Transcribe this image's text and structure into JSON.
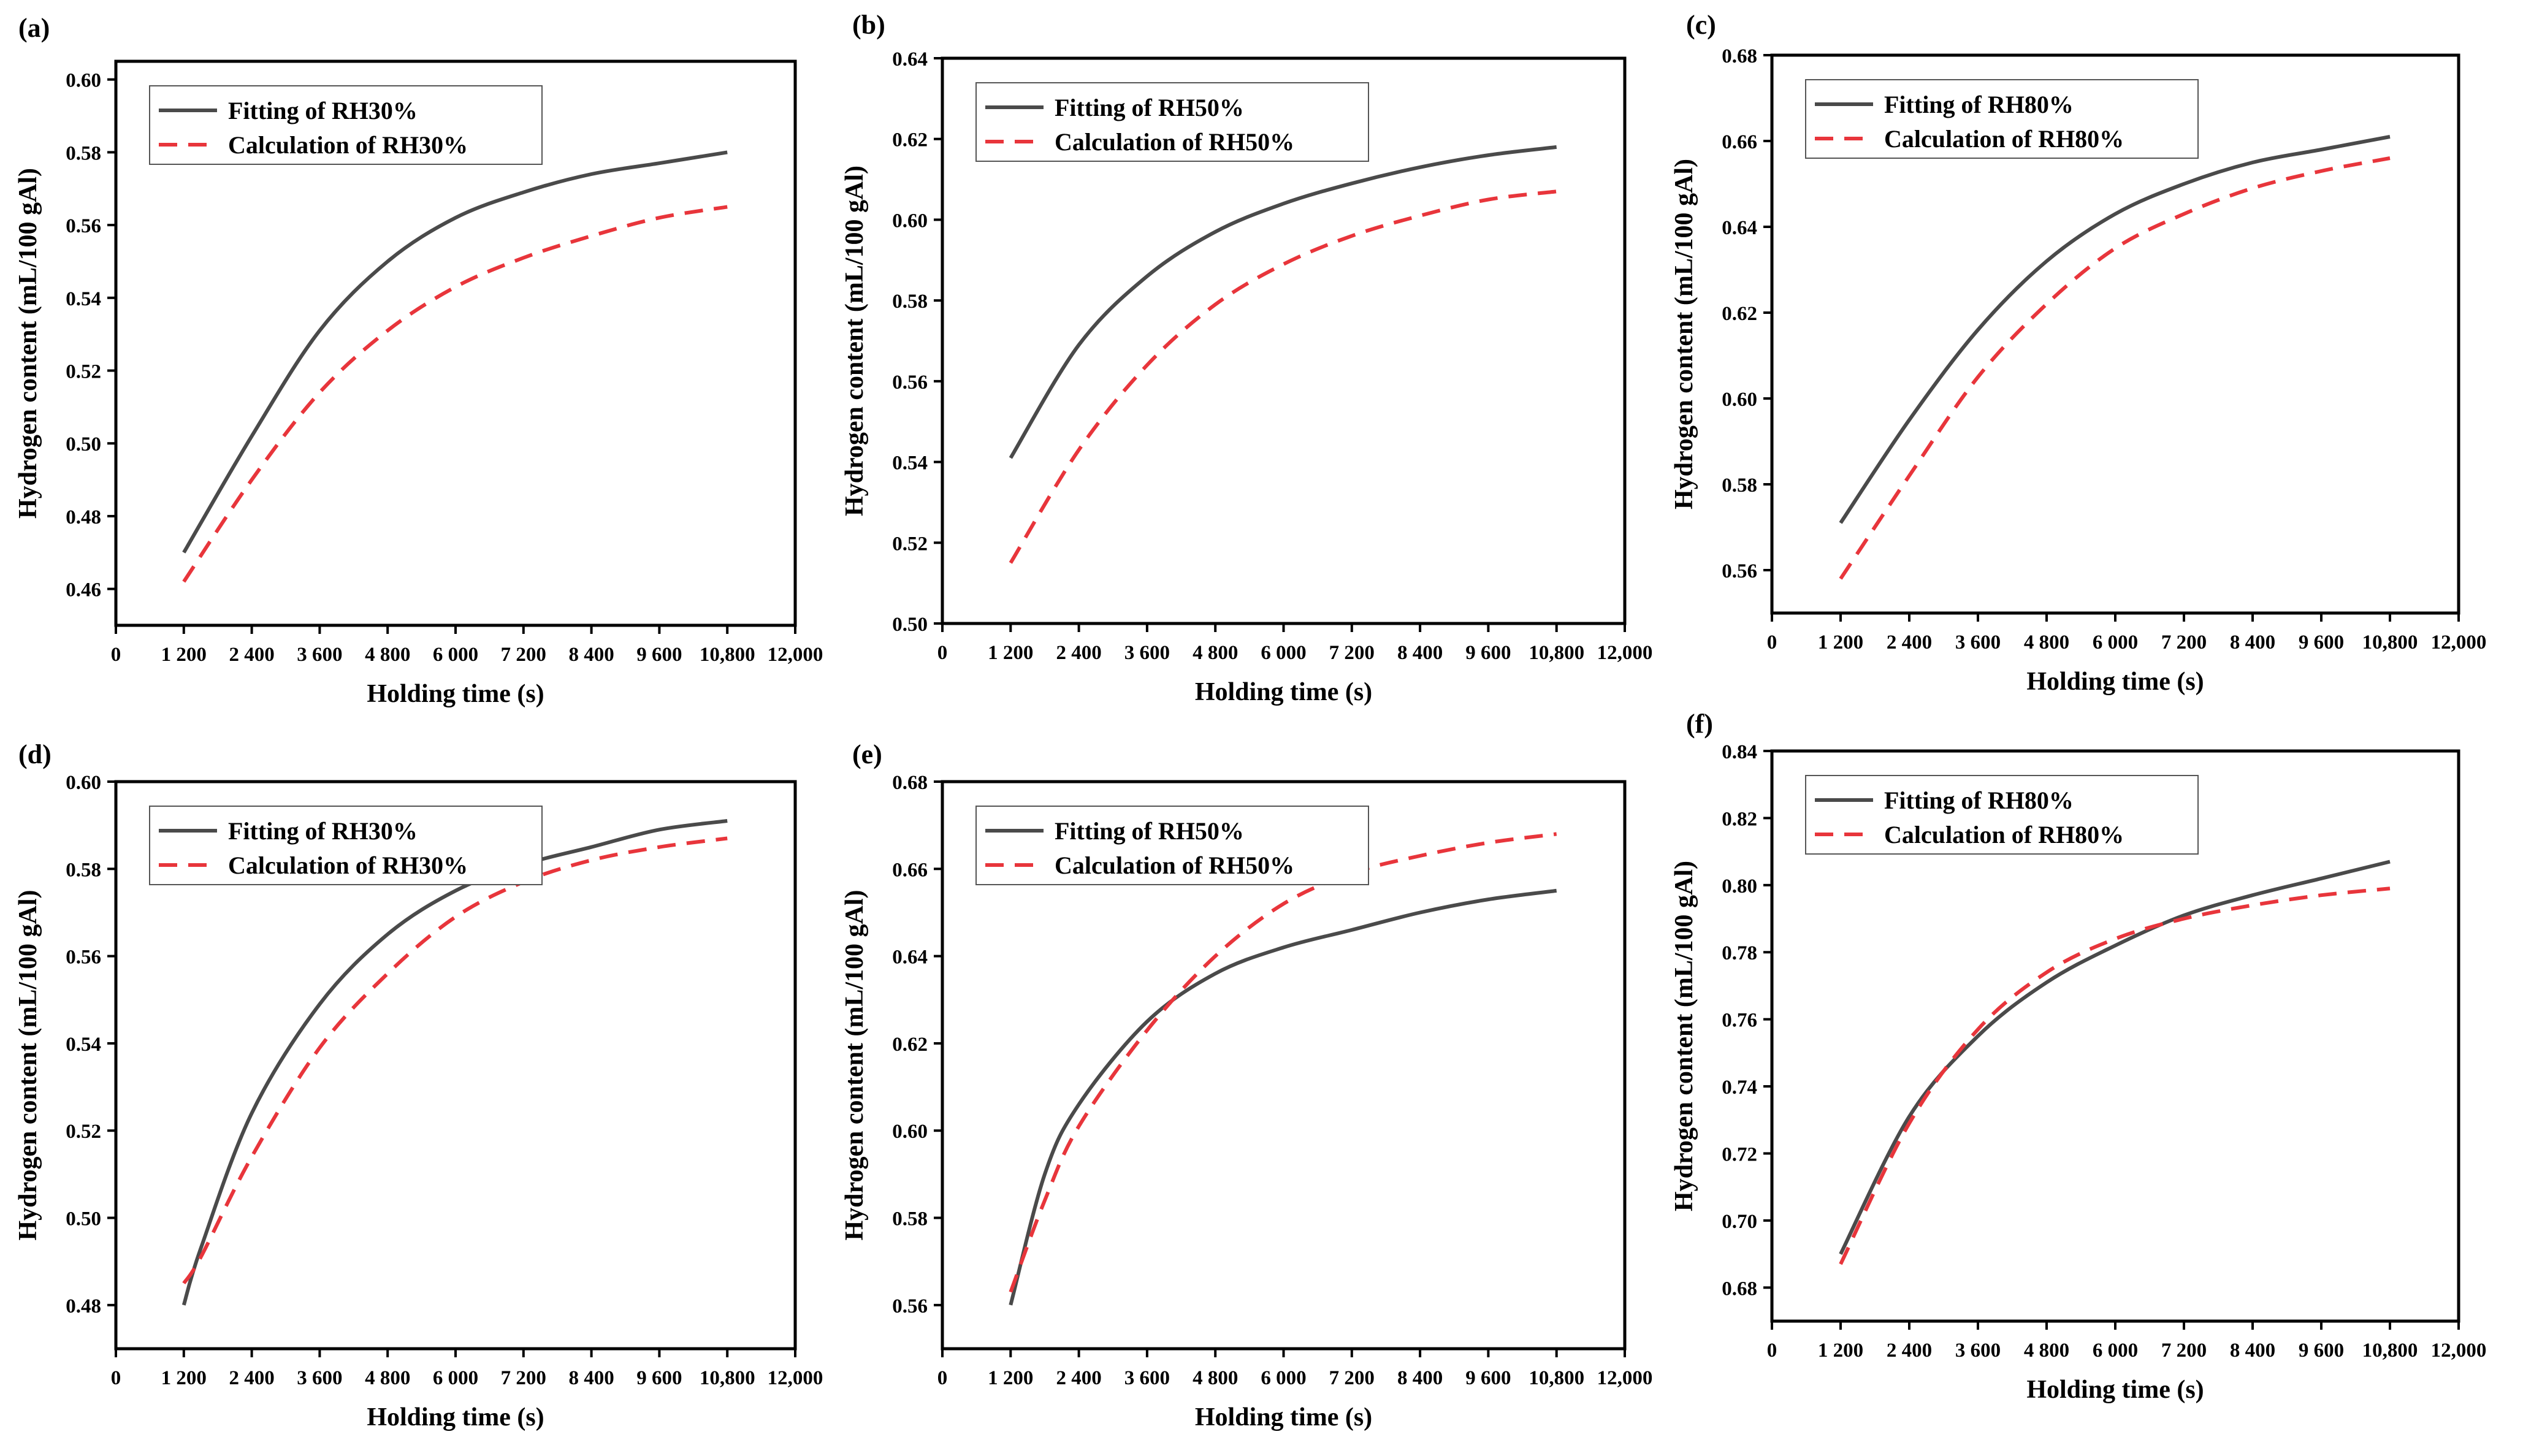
{
  "chart_data": [
    {
      "type": "line",
      "label": "(a)",
      "xlabel": "Holding time (s)",
      "ylabel": "Hydrogen content (mL/100 gAl)",
      "xlim": [
        0,
        12000
      ],
      "xticks": [
        0,
        1200,
        2400,
        3600,
        4800,
        6000,
        7200,
        8400,
        9600,
        10800,
        12000
      ],
      "xticklabels": [
        "0",
        "1 200",
        "2 400",
        "3 600",
        "4 800",
        "6 000",
        "7 200",
        "8 400",
        "9 600",
        "10,800",
        "12,000"
      ],
      "ylim": [
        0.45,
        0.605
      ],
      "yticks": [
        0.46,
        0.48,
        0.5,
        0.52,
        0.54,
        0.56,
        0.58,
        0.6
      ],
      "yticklabels": [
        "0.46",
        "0.48",
        "0.50",
        "0.52",
        "0.54",
        "0.56",
        "0.58",
        "0.60"
      ],
      "legend_position": "top-left",
      "x": [
        1200,
        2400,
        3600,
        4800,
        6000,
        7200,
        8400,
        9600,
        10800
      ],
      "series": [
        {
          "name": "Fitting of RH30%",
          "style": "solid",
          "color": "#4a4a4a",
          "values": [
            0.47,
            0.502,
            0.531,
            0.55,
            0.562,
            0.569,
            0.574,
            0.577,
            0.58
          ]
        },
        {
          "name": "Calculation of RH30%",
          "style": "dashed",
          "color": "#e8353b",
          "values": [
            0.462,
            0.49,
            0.514,
            0.531,
            0.543,
            0.551,
            0.557,
            0.562,
            0.565
          ]
        }
      ]
    },
    {
      "type": "line",
      "label": "(b)",
      "xlabel": "Holding time (s)",
      "ylabel": "Hydrogen content (mL/100 gAl)",
      "xlim": [
        0,
        12000
      ],
      "xticks": [
        0,
        1200,
        2400,
        3600,
        4800,
        6000,
        7200,
        8400,
        9600,
        10800,
        12000
      ],
      "xticklabels": [
        "0",
        "1 200",
        "2 400",
        "3 600",
        "4 800",
        "6 000",
        "7 200",
        "8 400",
        "9 600",
        "10,800",
        "12,000"
      ],
      "ylim": [
        0.5,
        0.64
      ],
      "yticks": [
        0.5,
        0.52,
        0.54,
        0.56,
        0.58,
        0.6,
        0.62,
        0.64
      ],
      "yticklabels": [
        "0.50",
        "0.52",
        "0.54",
        "0.56",
        "0.58",
        "0.60",
        "0.62",
        "0.64"
      ],
      "legend_position": "top-left",
      "x": [
        1200,
        2400,
        3600,
        4800,
        6000,
        7200,
        8400,
        9600,
        10800
      ],
      "series": [
        {
          "name": "Fitting of RH50%",
          "style": "solid",
          "color": "#4a4a4a",
          "values": [
            0.541,
            0.569,
            0.586,
            0.597,
            0.604,
            0.609,
            0.613,
            0.616,
            0.618
          ]
        },
        {
          "name": "Calculation of RH50%",
          "style": "dashed",
          "color": "#e8353b",
          "values": [
            0.515,
            0.543,
            0.564,
            0.579,
            0.589,
            0.596,
            0.601,
            0.605,
            0.607
          ]
        }
      ]
    },
    {
      "type": "line",
      "label": "(c)",
      "xlabel": "Holding time (s)",
      "ylabel": "Hydrogen content (mL/100 gAl)",
      "xlim": [
        0,
        12000
      ],
      "xticks": [
        0,
        1200,
        2400,
        3600,
        4800,
        6000,
        7200,
        8400,
        9600,
        10800,
        12000
      ],
      "xticklabels": [
        "0",
        "1 200",
        "2 400",
        "3 600",
        "4 800",
        "6 000",
        "7 200",
        "8 400",
        "9 600",
        "10,800",
        "12,000"
      ],
      "ylim": [
        0.55,
        0.68
      ],
      "yticks": [
        0.56,
        0.58,
        0.6,
        0.62,
        0.64,
        0.66,
        0.68
      ],
      "yticklabels": [
        "0.56",
        "0.58",
        "0.60",
        "0.62",
        "0.64",
        "0.66",
        "0.68"
      ],
      "legend_position": "top-left",
      "x": [
        1200,
        2400,
        3600,
        4800,
        6000,
        7200,
        8400,
        9600,
        10800
      ],
      "series": [
        {
          "name": "Fitting of RH80%",
          "style": "solid",
          "color": "#4a4a4a",
          "values": [
            0.571,
            0.595,
            0.616,
            0.632,
            0.643,
            0.65,
            0.655,
            0.658,
            0.661
          ]
        },
        {
          "name": "Calculation of RH80%",
          "style": "dashed",
          "color": "#e8353b",
          "values": [
            0.558,
            0.582,
            0.605,
            0.622,
            0.635,
            0.643,
            0.649,
            0.653,
            0.656
          ]
        }
      ]
    },
    {
      "type": "line",
      "label": "(d)",
      "xlabel": "Holding time (s)",
      "ylabel": "Hydrogen content (mL/100 gAl)",
      "xlim": [
        0,
        12000
      ],
      "xticks": [
        0,
        1200,
        2400,
        3600,
        4800,
        6000,
        7200,
        8400,
        9600,
        10800,
        12000
      ],
      "xticklabels": [
        "0",
        "1 200",
        "2 400",
        "3 600",
        "4 800",
        "6 000",
        "7 200",
        "8 400",
        "9 600",
        "10,800",
        "12,000"
      ],
      "ylim": [
        0.47,
        0.6
      ],
      "yticks": [
        0.48,
        0.5,
        0.52,
        0.54,
        0.56,
        0.58,
        0.6
      ],
      "yticklabels": [
        "0.48",
        "0.50",
        "0.52",
        "0.54",
        "0.56",
        "0.58",
        "0.60"
      ],
      "legend_position": "top-left",
      "x": [
        1200,
        1500,
        2400,
        3600,
        4800,
        6000,
        7200,
        8400,
        9600,
        10800
      ],
      "series": [
        {
          "name": "Fitting of RH30%",
          "style": "solid",
          "color": "#4a4a4a",
          "values": [
            0.48,
            0.493,
            0.524,
            0.549,
            0.565,
            0.575,
            0.581,
            0.585,
            0.589,
            0.591
          ]
        },
        {
          "name": "Calculation of RH30%",
          "style": "dashed",
          "color": "#e8353b",
          "values": [
            0.485,
            0.491,
            0.514,
            0.539,
            0.556,
            0.569,
            0.577,
            0.582,
            0.585,
            0.587
          ]
        }
      ]
    },
    {
      "type": "line",
      "label": "(e)",
      "xlabel": "Holding time (s)",
      "ylabel": "Hydrogen content (mL/100 gAl)",
      "xlim": [
        0,
        12000
      ],
      "xticks": [
        0,
        1200,
        2400,
        3600,
        4800,
        6000,
        7200,
        8400,
        9600,
        10800,
        12000
      ],
      "xticklabels": [
        "0",
        "1 200",
        "2 400",
        "3 600",
        "4 800",
        "6 000",
        "7 200",
        "8 400",
        "9 600",
        "10,800",
        "12,000"
      ],
      "ylim": [
        0.55,
        0.68
      ],
      "yticks": [
        0.56,
        0.58,
        0.6,
        0.62,
        0.64,
        0.66,
        0.68
      ],
      "yticklabels": [
        "0.56",
        "0.58",
        "0.60",
        "0.62",
        "0.64",
        "0.66",
        "0.68"
      ],
      "legend_position": "top-left",
      "x": [
        1200,
        1800,
        2400,
        3600,
        4800,
        6000,
        7200,
        8400,
        9600,
        10800
      ],
      "series": [
        {
          "name": "Fitting of RH50%",
          "style": "solid",
          "color": "#4a4a4a",
          "values": [
            0.56,
            0.59,
            0.606,
            0.625,
            0.636,
            0.642,
            0.646,
            0.65,
            0.653,
            0.655
          ]
        },
        {
          "name": "Calculation of RH50%",
          "style": "dashed",
          "color": "#e8353b",
          "values": [
            0.563,
            0.584,
            0.601,
            0.623,
            0.64,
            0.652,
            0.659,
            0.663,
            0.666,
            0.668
          ]
        }
      ]
    },
    {
      "type": "line",
      "label": "(f)",
      "xlabel": "Holding time (s)",
      "ylabel": "Hydrogen content (mL/100 gAl)",
      "xlim": [
        0,
        12000
      ],
      "xticks": [
        0,
        1200,
        2400,
        3600,
        4800,
        6000,
        7200,
        8400,
        9600,
        10800,
        12000
      ],
      "xticklabels": [
        "0",
        "1 200",
        "2 400",
        "3 600",
        "4 800",
        "6 000",
        "7 200",
        "8 400",
        "9 600",
        "10,800",
        "12,000"
      ],
      "ylim": [
        0.67,
        0.84
      ],
      "yticks": [
        0.68,
        0.7,
        0.72,
        0.74,
        0.76,
        0.78,
        0.8,
        0.82,
        0.84
      ],
      "yticklabels": [
        "0.68",
        "0.70",
        "0.72",
        "0.74",
        "0.76",
        "0.78",
        "0.80",
        "0.82",
        "0.84"
      ],
      "legend_position": "top-left",
      "x": [
        1200,
        2400,
        3600,
        4800,
        6000,
        7200,
        8400,
        9600,
        10800
      ],
      "series": [
        {
          "name": "Fitting of RH80%",
          "style": "solid",
          "color": "#4a4a4a",
          "values": [
            0.69,
            0.731,
            0.755,
            0.771,
            0.782,
            0.791,
            0.797,
            0.802,
            0.807
          ]
        },
        {
          "name": "Calculation of RH80%",
          "style": "dashed",
          "color": "#e8353b",
          "values": [
            0.687,
            0.729,
            0.757,
            0.774,
            0.784,
            0.79,
            0.794,
            0.797,
            0.799
          ]
        }
      ]
    }
  ]
}
